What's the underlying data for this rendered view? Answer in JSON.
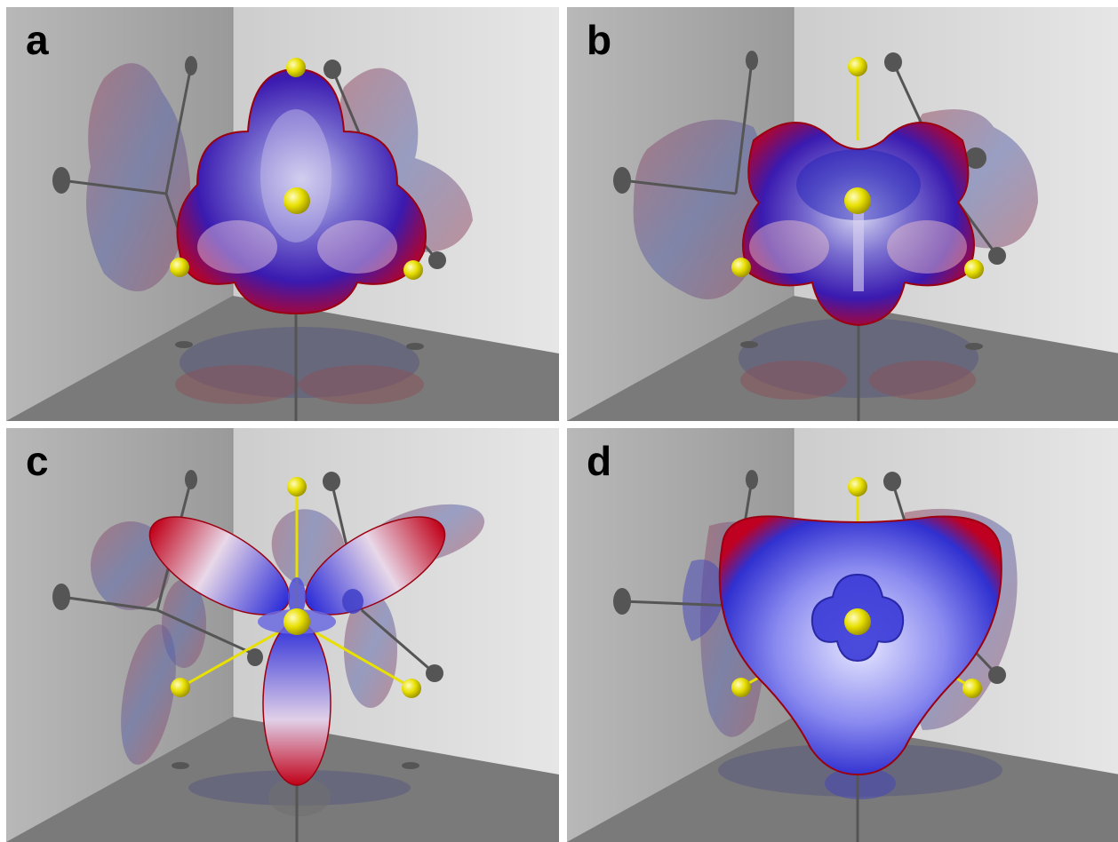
{
  "panels": [
    {
      "label": "a"
    },
    {
      "label": "b"
    },
    {
      "label": "c"
    },
    {
      "label": "d"
    }
  ],
  "colors": {
    "lobe_red": "#c40010",
    "lobe_blue": "#2a2ad8",
    "atom_yellow": "#e8e000",
    "bond_gray": "#555555",
    "floor_gray": "#7a7a7a"
  }
}
